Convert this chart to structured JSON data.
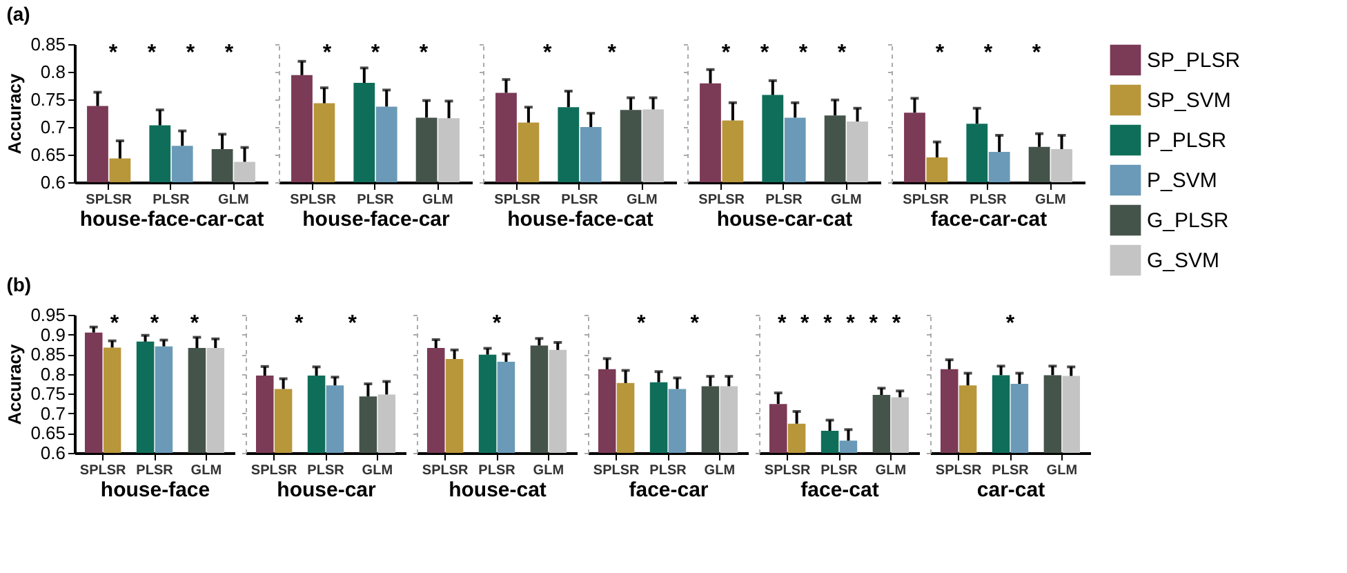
{
  "chart_data": [
    {
      "type": "bar",
      "title": "(a)",
      "ylabel": "Accuracy",
      "xlabel": "house-face-car-cat",
      "categories": [
        "SPLSR",
        "PLSR",
        "GLM"
      ],
      "ylim": [
        0.6,
        0.85
      ],
      "yticks": [
        0.6,
        0.65,
        0.7,
        0.75,
        0.8,
        0.85
      ],
      "annotations": [
        "*",
        "*",
        "*",
        "*"
      ],
      "series": [
        {
          "color": "#7b3a55",
          "values": [
            0.738,
            null,
            null
          ],
          "errors": [
            [
              0.738,
              0.763
            ],
            null,
            null
          ]
        },
        {
          "color": "#b8963a",
          "values": [
            0.643,
            null,
            null
          ],
          "errors": [
            [
              0.643,
              0.675
            ],
            null,
            null
          ]
        },
        {
          "color": "#0f6e5a",
          "values": [
            null,
            0.703,
            null
          ],
          "errors": [
            null,
            [
              0.703,
              0.731
            ],
            null
          ]
        },
        {
          "color": "#6a9ab8",
          "values": [
            null,
            0.666,
            null
          ],
          "errors": [
            null,
            [
              0.666,
              0.693
            ],
            null
          ]
        },
        {
          "color": "#45544a",
          "values": [
            null,
            null,
            0.66
          ],
          "errors": [
            null,
            null,
            [
              0.66,
              0.687
            ]
          ]
        },
        {
          "color": "#c4c4c4",
          "values": [
            null,
            null,
            0.637
          ],
          "errors": [
            null,
            null,
            [
              0.637,
              0.663
            ]
          ]
        }
      ]
    },
    {
      "type": "bar",
      "xlabel": "house-face-car",
      "categories": [
        "SPLSR",
        "PLSR",
        "GLM"
      ],
      "ylim": [
        0.6,
        0.85
      ],
      "yticks": [
        0.6,
        0.65,
        0.7,
        0.75,
        0.8,
        0.85
      ],
      "tick_labels": "x",
      "annotations": [
        "*",
        "*",
        "*"
      ],
      "series": [
        {
          "color": "#7b3a55",
          "values": [
            0.794,
            null,
            null
          ],
          "errors": [
            [
              0.794,
              0.819
            ],
            null,
            null
          ]
        },
        {
          "color": "#b8963a",
          "values": [
            0.743,
            null,
            null
          ],
          "errors": [
            [
              0.743,
              0.771
            ],
            null,
            null
          ]
        },
        {
          "color": "#0f6e5a",
          "values": [
            null,
            0.78,
            null
          ],
          "errors": [
            null,
            [
              0.78,
              0.807
            ],
            null
          ]
        },
        {
          "color": "#6a9ab8",
          "values": [
            null,
            0.737,
            null
          ],
          "errors": [
            null,
            [
              0.737,
              0.767
            ],
            null
          ]
        },
        {
          "color": "#45544a",
          "values": [
            null,
            null,
            0.717
          ],
          "errors": [
            null,
            null,
            [
              0.717,
              0.748
            ]
          ]
        },
        {
          "color": "#c4c4c4",
          "values": [
            null,
            null,
            0.716
          ],
          "errors": [
            null,
            null,
            [
              0.716,
              0.747
            ]
          ]
        }
      ]
    },
    {
      "type": "bar",
      "xlabel": "house-face-cat",
      "categories": [
        "SPLSR",
        "PLSR",
        "GLM"
      ],
      "ylim": [
        0.6,
        0.85
      ],
      "yticks": [
        0.6,
        0.65,
        0.7,
        0.75,
        0.8,
        0.85
      ],
      "tick_labels": "x",
      "annotations": [
        "*",
        "*"
      ],
      "series": [
        {
          "color": "#7b3a55",
          "values": [
            0.762,
            null,
            null
          ],
          "errors": [
            [
              0.762,
              0.786
            ],
            null,
            null
          ]
        },
        {
          "color": "#b8963a",
          "values": [
            0.708,
            null,
            null
          ],
          "errors": [
            [
              0.708,
              0.736
            ],
            null,
            null
          ]
        },
        {
          "color": "#0f6e5a",
          "values": [
            null,
            0.736,
            null
          ],
          "errors": [
            null,
            [
              0.736,
              0.765
            ],
            null
          ]
        },
        {
          "color": "#6a9ab8",
          "values": [
            null,
            0.7,
            null
          ],
          "errors": [
            null,
            [
              0.7,
              0.725
            ],
            null
          ]
        },
        {
          "color": "#45544a",
          "values": [
            null,
            null,
            0.731
          ],
          "errors": [
            null,
            null,
            [
              0.731,
              0.753
            ]
          ]
        },
        {
          "color": "#c4c4c4",
          "values": [
            null,
            null,
            0.732
          ],
          "errors": [
            null,
            null,
            [
              0.732,
              0.753
            ]
          ]
        }
      ]
    },
    {
      "type": "bar",
      "xlabel": "house-car-cat",
      "categories": [
        "SPLSR",
        "PLSR",
        "GLM"
      ],
      "ylim": [
        0.6,
        0.85
      ],
      "yticks": [
        0.6,
        0.65,
        0.7,
        0.75,
        0.8,
        0.85
      ],
      "tick_labels": "x",
      "annotations": [
        "*",
        "*",
        "*",
        "*"
      ],
      "series": [
        {
          "color": "#7b3a55",
          "values": [
            0.779,
            null,
            null
          ],
          "errors": [
            [
              0.779,
              0.804
            ],
            null,
            null
          ]
        },
        {
          "color": "#b8963a",
          "values": [
            0.712,
            null,
            null
          ],
          "errors": [
            [
              0.712,
              0.744
            ],
            null,
            null
          ]
        },
        {
          "color": "#0f6e5a",
          "values": [
            null,
            0.758,
            null
          ],
          "errors": [
            null,
            [
              0.758,
              0.784
            ],
            null
          ]
        },
        {
          "color": "#6a9ab8",
          "values": [
            null,
            0.717,
            null
          ],
          "errors": [
            null,
            [
              0.717,
              0.744
            ],
            null
          ]
        },
        {
          "color": "#45544a",
          "values": [
            null,
            null,
            0.721
          ],
          "errors": [
            null,
            null,
            [
              0.721,
              0.749
            ]
          ]
        },
        {
          "color": "#c4c4c4",
          "values": [
            null,
            null,
            0.71
          ],
          "errors": [
            null,
            null,
            [
              0.71,
              0.734
            ]
          ]
        }
      ]
    },
    {
      "type": "bar",
      "xlabel": "face-car-cat",
      "categories": [
        "SPLSR",
        "PLSR",
        "GLM"
      ],
      "ylim": [
        0.6,
        0.85
      ],
      "yticks": [
        0.6,
        0.65,
        0.7,
        0.75,
        0.8,
        0.85
      ],
      "tick_labels": "x",
      "legend": "right",
      "annotations": [
        "*",
        "*",
        "*"
      ],
      "series": [
        {
          "name": "SP_PLSR",
          "color": "#7b3a55",
          "values": [
            0.726,
            null,
            null
          ],
          "errors": [
            [
              0.726,
              0.752
            ],
            null,
            null
          ]
        },
        {
          "name": "SP_SVM",
          "color": "#b8963a",
          "values": [
            0.645,
            null,
            null
          ],
          "errors": [
            [
              0.645,
              0.673
            ],
            null,
            null
          ]
        },
        {
          "name": "P_PLSR",
          "color": "#0f6e5a",
          "values": [
            null,
            0.706,
            null
          ],
          "errors": [
            null,
            [
              0.706,
              0.734
            ],
            null
          ]
        },
        {
          "name": "P_SVM",
          "color": "#6a9ab8",
          "values": [
            null,
            0.655,
            null
          ],
          "errors": [
            null,
            [
              0.655,
              0.685
            ],
            null
          ]
        },
        {
          "name": "G_PLSR",
          "color": "#45544a",
          "values": [
            null,
            null,
            0.664
          ],
          "errors": [
            null,
            null,
            [
              0.664,
              0.688
            ]
          ]
        },
        {
          "name": "G_SVM",
          "color": "#c4c4c4",
          "values": [
            null,
            null,
            0.66
          ],
          "errors": [
            null,
            null,
            [
              0.66,
              0.685
            ]
          ]
        }
      ]
    },
    {
      "type": "bar",
      "title": "(b)",
      "ylabel": "Accuracy",
      "xlabel": "house-face",
      "categories": [
        "SPLSR",
        "PLSR",
        "GLM"
      ],
      "ylim": [
        0.6,
        0.95
      ],
      "yticks": [
        0.6,
        0.65,
        0.7,
        0.75,
        0.8,
        0.85,
        0.9,
        0.95
      ],
      "annotations": [
        "*",
        "*",
        "*"
      ],
      "series": [
        {
          "color": "#7b3a55",
          "values": [
            0.905,
            null,
            null
          ],
          "errors": [
            [
              0.905,
              0.919
            ],
            null,
            null
          ]
        },
        {
          "color": "#b8963a",
          "values": [
            0.867,
            null,
            null
          ],
          "errors": [
            [
              0.867,
              0.884
            ],
            null,
            null
          ]
        },
        {
          "color": "#0f6e5a",
          "values": [
            null,
            0.882,
            null
          ],
          "errors": [
            null,
            [
              0.882,
              0.898
            ],
            null
          ]
        },
        {
          "color": "#6a9ab8",
          "values": [
            null,
            0.87,
            null
          ],
          "errors": [
            null,
            [
              0.87,
              0.886
            ],
            null
          ]
        },
        {
          "color": "#45544a",
          "values": [
            null,
            null,
            0.866
          ],
          "errors": [
            null,
            null,
            [
              0.866,
              0.893
            ]
          ]
        },
        {
          "color": "#c4c4c4",
          "values": [
            null,
            null,
            0.866
          ],
          "errors": [
            null,
            null,
            [
              0.866,
              0.889
            ]
          ]
        }
      ]
    },
    {
      "type": "bar",
      "xlabel": "house-car",
      "categories": [
        "SPLSR",
        "PLSR",
        "GLM"
      ],
      "ylim": [
        0.6,
        0.95
      ],
      "yticks": [
        0.6,
        0.65,
        0.7,
        0.75,
        0.8,
        0.85,
        0.9,
        0.95
      ],
      "tick_labels": "x",
      "annotations": [
        "*",
        "*"
      ],
      "series": [
        {
          "color": "#7b3a55",
          "values": [
            0.796,
            null,
            null
          ],
          "errors": [
            [
              0.796,
              0.819
            ],
            null,
            null
          ]
        },
        {
          "color": "#b8963a",
          "values": [
            0.762,
            null,
            null
          ],
          "errors": [
            [
              0.762,
              0.788
            ],
            null,
            null
          ]
        },
        {
          "color": "#0f6e5a",
          "values": [
            null,
            0.796,
            null
          ],
          "errors": [
            null,
            [
              0.796,
              0.818
            ],
            null
          ]
        },
        {
          "color": "#6a9ab8",
          "values": [
            null,
            0.771,
            null
          ],
          "errors": [
            null,
            [
              0.771,
              0.792
            ],
            null
          ]
        },
        {
          "color": "#45544a",
          "values": [
            null,
            null,
            0.743
          ],
          "errors": [
            null,
            null,
            [
              0.743,
              0.775
            ]
          ]
        },
        {
          "color": "#c4c4c4",
          "values": [
            null,
            null,
            0.748
          ],
          "errors": [
            null,
            null,
            [
              0.748,
              0.781
            ]
          ]
        }
      ]
    },
    {
      "type": "bar",
      "xlabel": "house-cat",
      "categories": [
        "SPLSR",
        "PLSR",
        "GLM"
      ],
      "ylim": [
        0.6,
        0.95
      ],
      "yticks": [
        0.6,
        0.65,
        0.7,
        0.75,
        0.8,
        0.85,
        0.9,
        0.95
      ],
      "tick_labels": "x",
      "annotations": [
        "*"
      ],
      "series": [
        {
          "color": "#7b3a55",
          "values": [
            0.866,
            null,
            null
          ],
          "errors": [
            [
              0.866,
              0.887
            ],
            null,
            null
          ]
        },
        {
          "color": "#b8963a",
          "values": [
            0.838,
            null,
            null
          ],
          "errors": [
            [
              0.838,
              0.861
            ],
            null,
            null
          ]
        },
        {
          "color": "#0f6e5a",
          "values": [
            null,
            0.849,
            null
          ],
          "errors": [
            null,
            [
              0.849,
              0.865
            ],
            null
          ]
        },
        {
          "color": "#6a9ab8",
          "values": [
            null,
            0.831,
            null
          ],
          "errors": [
            null,
            [
              0.831,
              0.851
            ],
            null
          ]
        },
        {
          "color": "#45544a",
          "values": [
            null,
            null,
            0.872
          ],
          "errors": [
            null,
            null,
            [
              0.872,
              0.89
            ]
          ]
        },
        {
          "color": "#c4c4c4",
          "values": [
            null,
            null,
            0.861
          ],
          "errors": [
            null,
            null,
            [
              0.861,
              0.88
            ]
          ]
        }
      ]
    },
    {
      "type": "bar",
      "xlabel": "face-car",
      "categories": [
        "SPLSR",
        "PLSR",
        "GLM"
      ],
      "ylim": [
        0.6,
        0.95
      ],
      "yticks": [
        0.6,
        0.65,
        0.7,
        0.75,
        0.8,
        0.85,
        0.9,
        0.95
      ],
      "tick_labels": "x",
      "annotations": [
        "*",
        "*"
      ],
      "series": [
        {
          "color": "#7b3a55",
          "values": [
            0.812,
            null,
            null
          ],
          "errors": [
            [
              0.812,
              0.839
            ],
            null,
            null
          ]
        },
        {
          "color": "#b8963a",
          "values": [
            0.777,
            null,
            null
          ],
          "errors": [
            [
              0.777,
              0.809
            ],
            null,
            null
          ]
        },
        {
          "color": "#0f6e5a",
          "values": [
            null,
            0.779,
            null
          ],
          "errors": [
            null,
            [
              0.779,
              0.806
            ],
            null
          ]
        },
        {
          "color": "#6a9ab8",
          "values": [
            null,
            0.762,
            null
          ],
          "errors": [
            null,
            [
              0.762,
              0.79
            ],
            null
          ]
        },
        {
          "color": "#45544a",
          "values": [
            null,
            null,
            0.769
          ],
          "errors": [
            null,
            null,
            [
              0.769,
              0.794
            ]
          ]
        },
        {
          "color": "#c4c4c4",
          "values": [
            null,
            null,
            0.769
          ],
          "errors": [
            null,
            null,
            [
              0.769,
              0.794
            ]
          ]
        }
      ]
    },
    {
      "type": "bar",
      "xlabel": "face-cat",
      "categories": [
        "SPLSR",
        "PLSR",
        "GLM"
      ],
      "ylim": [
        0.6,
        0.95
      ],
      "yticks": [
        0.6,
        0.65,
        0.7,
        0.75,
        0.8,
        0.85,
        0.9,
        0.95
      ],
      "tick_labels": "x",
      "annotations": [
        "*",
        "*",
        "*",
        "*",
        "*",
        "*"
      ],
      "series": [
        {
          "color": "#7b3a55",
          "values": [
            0.724,
            null,
            null
          ],
          "errors": [
            [
              0.724,
              0.752
            ],
            null,
            null
          ]
        },
        {
          "color": "#b8963a",
          "values": [
            0.674,
            null,
            null
          ],
          "errors": [
            [
              0.674,
              0.705
            ],
            null,
            null
          ]
        },
        {
          "color": "#0f6e5a",
          "values": [
            null,
            0.656,
            null
          ],
          "errors": [
            null,
            [
              0.656,
              0.683
            ],
            null
          ]
        },
        {
          "color": "#6a9ab8",
          "values": [
            null,
            0.631,
            null
          ],
          "errors": [
            null,
            [
              0.631,
              0.659
            ],
            null
          ]
        },
        {
          "color": "#45544a",
          "values": [
            null,
            null,
            0.747
          ],
          "errors": [
            null,
            null,
            [
              0.747,
              0.764
            ]
          ]
        },
        {
          "color": "#c4c4c4",
          "values": [
            null,
            null,
            0.741
          ],
          "errors": [
            null,
            null,
            [
              0.741,
              0.757
            ]
          ]
        }
      ]
    },
    {
      "type": "bar",
      "xlabel": "car-cat",
      "categories": [
        "SPLSR",
        "PLSR",
        "GLM"
      ],
      "ylim": [
        0.6,
        0.95
      ],
      "yticks": [
        0.6,
        0.65,
        0.7,
        0.75,
        0.8,
        0.85,
        0.9,
        0.95
      ],
      "tick_labels": "x",
      "annotations": [
        "*"
      ],
      "series": [
        {
          "color": "#7b3a55",
          "values": [
            0.812,
            null,
            null
          ],
          "errors": [
            [
              0.812,
              0.836
            ],
            null,
            null
          ]
        },
        {
          "color": "#b8963a",
          "values": [
            0.771,
            null,
            null
          ],
          "errors": [
            [
              0.771,
              0.802
            ],
            null,
            null
          ]
        },
        {
          "color": "#0f6e5a",
          "values": [
            null,
            0.797,
            null
          ],
          "errors": [
            null,
            [
              0.797,
              0.82
            ],
            null
          ]
        },
        {
          "color": "#6a9ab8",
          "values": [
            null,
            0.775,
            null
          ],
          "errors": [
            null,
            [
              0.775,
              0.802
            ],
            null
          ]
        },
        {
          "color": "#45544a",
          "values": [
            null,
            null,
            0.797
          ],
          "errors": [
            null,
            null,
            [
              0.797,
              0.82
            ]
          ]
        },
        {
          "color": "#c4c4c4",
          "values": [
            null,
            null,
            0.795
          ],
          "errors": [
            null,
            null,
            [
              0.795,
              0.818
            ]
          ]
        }
      ]
    }
  ]
}
